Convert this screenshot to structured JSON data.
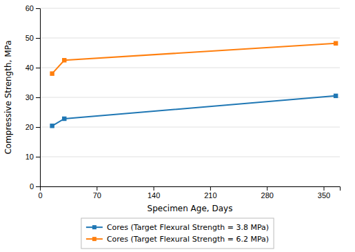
{
  "chart_data": {
    "type": "line",
    "xlabel": "Specimen Age, Days",
    "ylabel": "Compressive Strength, MPa",
    "x": [
      15,
      30,
      365
    ],
    "series": [
      {
        "name": "Cores (Target Flexural Strength = 3.8 MPa)",
        "values": [
          20.4,
          22.8,
          30.5
        ],
        "marker": "square"
      },
      {
        "name": "Cores (Target Flexural Strength = 6.2 MPa)",
        "values": [
          38.0,
          42.5,
          48.2
        ],
        "marker": "square"
      }
    ],
    "xlim": [
      0,
      370
    ],
    "ylim": [
      0,
      60
    ],
    "xticks": [
      0,
      70,
      140,
      210,
      280,
      350
    ],
    "yticks": [
      0,
      10,
      20,
      30,
      40,
      50,
      60
    ],
    "grid": "y",
    "legend": "bottom"
  }
}
